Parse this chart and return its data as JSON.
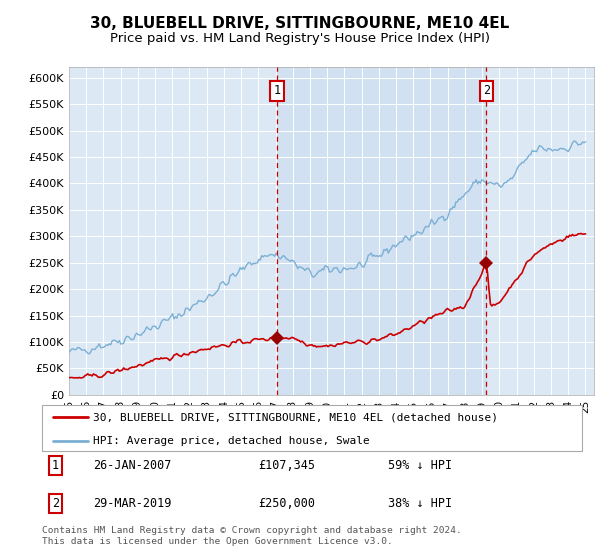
{
  "title": "30, BLUEBELL DRIVE, SITTINGBOURNE, ME10 4EL",
  "subtitle": "Price paid vs. HM Land Registry's House Price Index (HPI)",
  "ylim": [
    0,
    620000
  ],
  "yticks": [
    0,
    50000,
    100000,
    150000,
    200000,
    250000,
    300000,
    350000,
    400000,
    450000,
    500000,
    550000,
    600000
  ],
  "ytick_labels": [
    "£0",
    "£50K",
    "£100K",
    "£150K",
    "£200K",
    "£250K",
    "£300K",
    "£350K",
    "£400K",
    "£450K",
    "£500K",
    "£550K",
    "£600K"
  ],
  "xlim": [
    1995,
    2025.5
  ],
  "sale1_date": 2007.08,
  "sale1_price": 107345,
  "sale1_label": "1",
  "sale1_text": "26-JAN-2007",
  "sale1_price_text": "£107,345",
  "sale1_pct": "59% ↓ HPI",
  "sale2_date": 2019.25,
  "sale2_price": 250000,
  "sale2_label": "2",
  "sale2_text": "29-MAR-2019",
  "sale2_price_text": "£250,000",
  "sale2_pct": "38% ↓ HPI",
  "legend_line1": "30, BLUEBELL DRIVE, SITTINGBOURNE, ME10 4EL (detached house)",
  "legend_line2": "HPI: Average price, detached house, Swale",
  "footer": "Contains HM Land Registry data © Crown copyright and database right 2024.\nThis data is licensed under the Open Government Licence v3.0.",
  "line_color_property": "#cc0000",
  "line_color_hpi": "#7bafd4",
  "background_color": "#dce9f5",
  "shade_color": "#c5d9ee",
  "plot_bg_color": "#dce9f5",
  "marker_color_property": "#990000",
  "vline_color": "#cc0000",
  "title_fontsize": 11,
  "subtitle_fontsize": 9.5,
  "grid_color": "#ffffff"
}
